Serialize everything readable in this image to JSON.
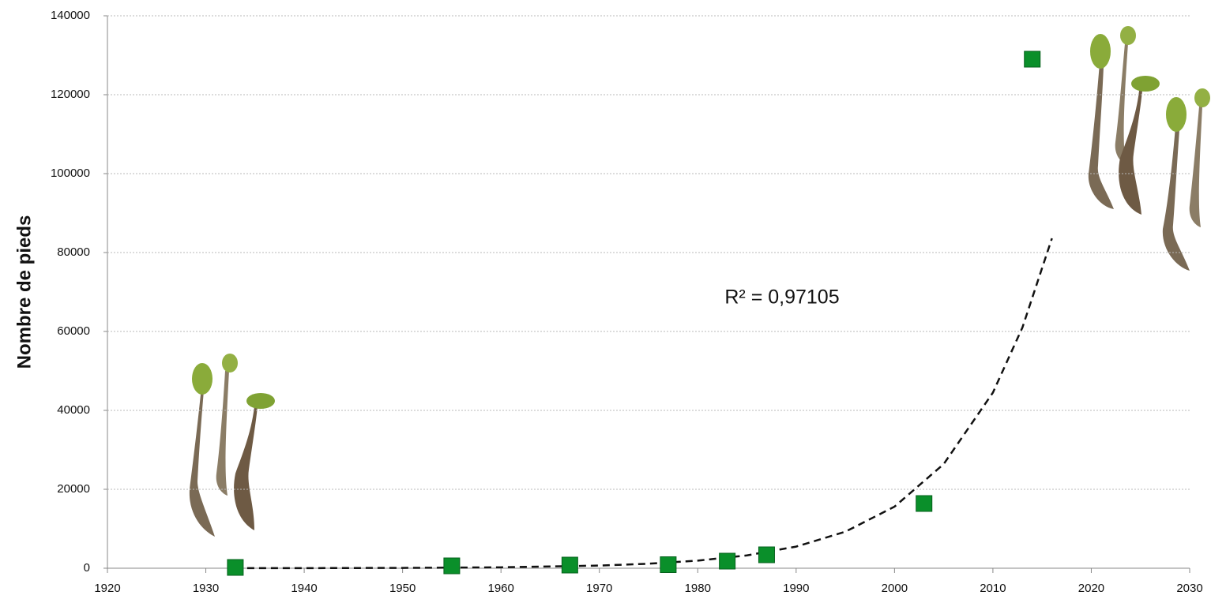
{
  "chart_data": {
    "type": "scatter",
    "y_label": "Nombre de pieds",
    "x": [
      1933,
      1955,
      1967,
      1977,
      1983,
      1987,
      2003,
      2014
    ],
    "values": [
      200,
      600,
      800,
      900,
      1800,
      3400,
      16400,
      129000
    ],
    "color": "#0a8f2a",
    "trendline": {
      "x": [
        1933,
        1940,
        1950,
        1960,
        1970,
        1975,
        1980,
        1985,
        1990,
        1995,
        2000,
        2005,
        2010,
        2013,
        2016
      ],
      "values": [
        14,
        29,
        83,
        236,
        675,
        1140,
        1920,
        3250,
        5480,
        9250,
        15600,
        26400,
        44500,
        61000,
        83600
      ]
    },
    "annotation": "R² = 0,97105",
    "xlim": [
      1920,
      2030
    ],
    "xticks": [
      1920,
      1930,
      1940,
      1950,
      1960,
      1970,
      1980,
      1990,
      2000,
      2010,
      2020,
      2030
    ],
    "ylim": [
      0,
      140000
    ],
    "yticks": [
      0,
      20000,
      40000,
      60000,
      80000,
      100000,
      120000,
      140000
    ],
    "grid": true
  }
}
